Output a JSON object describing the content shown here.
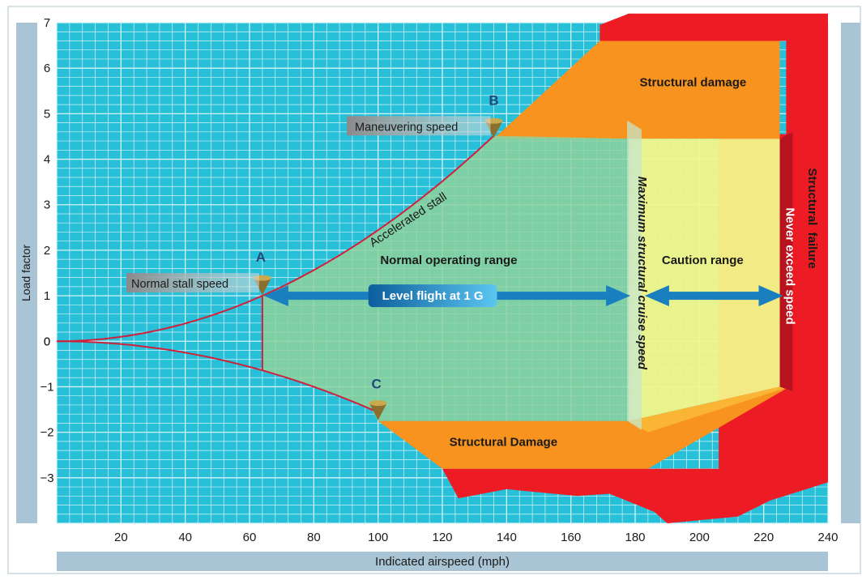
{
  "chart_data": {
    "type": "area",
    "title": "",
    "xlabel": "Indicated airspeed (mph)",
    "ylabel": "Load factor",
    "xlim": [
      0,
      240
    ],
    "ylim": [
      -4,
      7
    ],
    "x_ticks": [
      20,
      40,
      60,
      80,
      100,
      120,
      140,
      160,
      180,
      200,
      220,
      240
    ],
    "y_ticks": [
      -3,
      -2,
      -1,
      0,
      1,
      2,
      3,
      4,
      5,
      6,
      7
    ],
    "grid": true,
    "series": [
      {
        "name": "Accelerated stall",
        "x": [
          0,
          10,
          20,
          30,
          40,
          50,
          64,
          80,
          100,
          120,
          136
        ],
        "y": [
          0,
          0.02,
          0.1,
          0.22,
          0.39,
          0.61,
          1.0,
          1.55,
          2.42,
          3.48,
          4.45
        ]
      },
      {
        "x": [
          0,
          10,
          20,
          30,
          40,
          50,
          64,
          80,
          100
        ],
        "y": [
          0,
          -0.02,
          -0.07,
          -0.14,
          -0.25,
          -0.39,
          -0.64,
          -1.0,
          -1.75
        ]
      }
    ],
    "regions": [
      {
        "name": "Normal operating range",
        "color": "#8fd19e"
      },
      {
        "name": "Caution range",
        "color": "#f2f58a"
      },
      {
        "name": "Structural damage",
        "color": "#f7931e"
      },
      {
        "name": "Structural Damage",
        "color": "#f7931e"
      },
      {
        "name": "Structural  failure",
        "color": "#ed1c24"
      }
    ],
    "points": [
      {
        "label": "A",
        "name": "Normal stall speed",
        "x": 64,
        "y": 1
      },
      {
        "label": "B",
        "name": "Maneuvering speed",
        "x": 136,
        "y": 4.4
      },
      {
        "label": "C",
        "name": "",
        "x": 100,
        "y": -1.75
      }
    ],
    "annotations": {
      "vline_cruise": "Maximum structural cruise speed",
      "vline_never": "Never exceed speed",
      "level_flight": "Level flight at 1 G",
      "accelerated_stall": "Accelerated stall"
    }
  },
  "colors": {
    "grid_bg": "#27c0d8",
    "grid_line": "#d6f2f8",
    "axis_bar": "#a9c4d4",
    "curve": "#d0213a",
    "green": "#8fd19e",
    "yellow": "#f2f58a",
    "orange": "#f7931e",
    "red": "#ed1c24",
    "arrow": "#1a7fbf"
  }
}
